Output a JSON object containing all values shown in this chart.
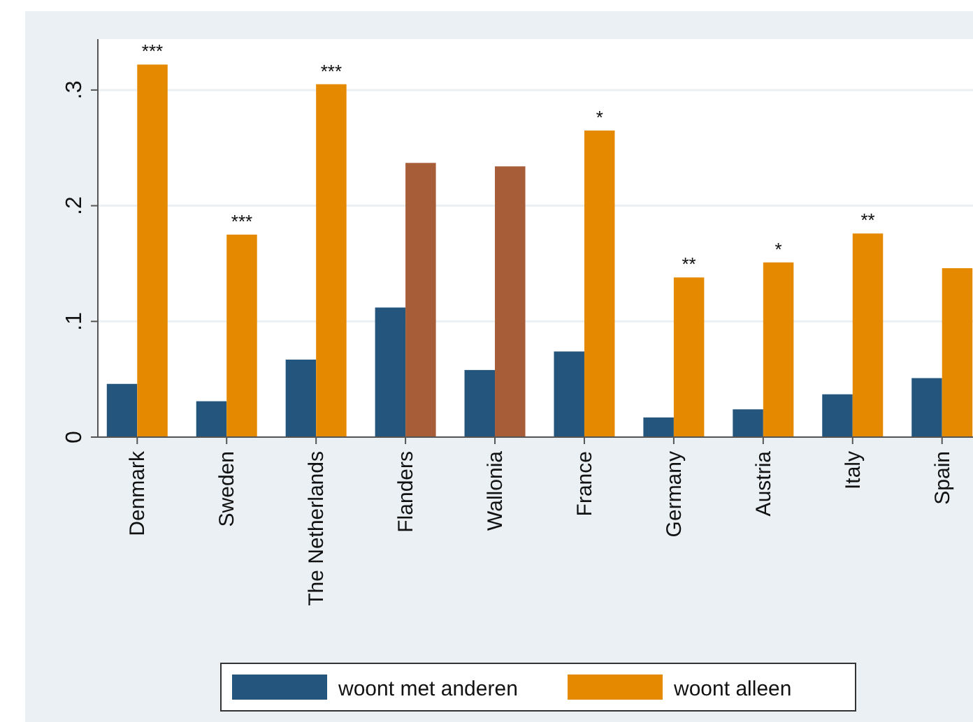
{
  "chart_data": {
    "type": "bar",
    "categories": [
      "Denmark",
      "Sweden",
      "The Netherlands",
      "Flanders",
      "Wallonia",
      "France",
      "Germany",
      "Austria",
      "Italy",
      "Spain"
    ],
    "series": [
      {
        "name": "woont met anderen",
        "color": "#24557c",
        "values": [
          0.046,
          0.031,
          0.067,
          0.112,
          0.058,
          0.074,
          0.017,
          0.024,
          0.037,
          0.051
        ]
      },
      {
        "name": "woont alleen",
        "color": "#e58a00",
        "colors": [
          "#e58a00",
          "#e58a00",
          "#e58a00",
          "#a65d38",
          "#a65d38",
          "#e58a00",
          "#e58a00",
          "#e58a00",
          "#e58a00",
          "#e58a00"
        ],
        "values": [
          0.322,
          0.175,
          0.305,
          0.237,
          0.234,
          0.265,
          0.138,
          0.151,
          0.176,
          0.146
        ]
      }
    ],
    "ylim": [
      0,
      0.344
    ],
    "yticks": [
      {
        "value": 0,
        "label": "0"
      },
      {
        "value": 0.1,
        "label": ".1"
      },
      {
        "value": 0.2,
        "label": ".2"
      },
      {
        "value": 0.3,
        "label": ".3"
      }
    ],
    "grid": "y",
    "legend": "bottom",
    "annotations": [
      {
        "text": "***",
        "x": "Denmark",
        "y": 0.322
      },
      {
        "text": "***",
        "x": "Sweden",
        "y": 0.175
      },
      {
        "text": "***",
        "x": "The Netherlands",
        "y": 0.305
      },
      {
        "text": "*",
        "x": "France",
        "y": 0.265
      },
      {
        "text": "**",
        "x": "Germany",
        "y": 0.138
      },
      {
        "text": "*",
        "x": "Austria",
        "y": 0.151
      },
      {
        "text": "**",
        "x": "Italy",
        "y": 0.176
      }
    ]
  }
}
